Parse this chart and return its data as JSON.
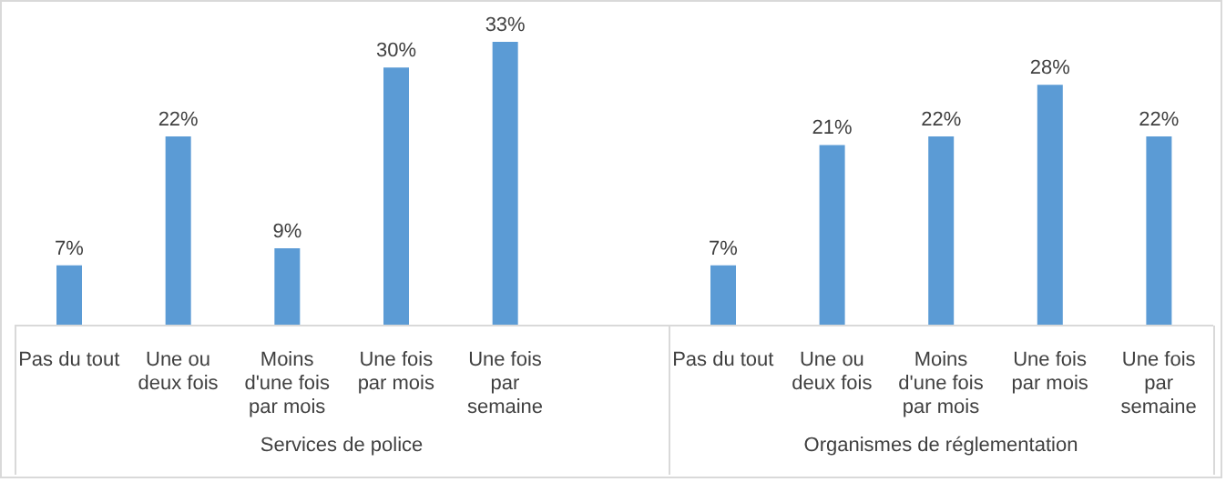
{
  "chart_data": [
    {
      "type": "bar",
      "categories": [
        "Pas du tout",
        "Une ou deux fois",
        "Moins d'une fois par mois",
        "Une fois par mois",
        "Une fois par semaine",
        null
      ],
      "values": [
        7,
        22,
        9,
        30,
        33,
        null
      ],
      "value_labels": [
        "7%",
        "22%",
        "9%",
        "30%",
        "33%",
        null
      ],
      "color": "#5b9bd5",
      "tick_labels": "x",
      "xlabel": "Services de police"
    },
    {
      "type": "bar",
      "categories": [
        "Pas du tout",
        "Une ou deux fois",
        "Moins d'une fois par mois",
        "Une fois par mois",
        "Une fois par semaine"
      ],
      "values": [
        7,
        21,
        22,
        28,
        22
      ],
      "value_labels": [
        "7%",
        "21%",
        "22%",
        "28%",
        "22%"
      ],
      "color": "#5b9bd5",
      "tick_labels": "x",
      "xlabel": "Organismes de réglementation"
    }
  ]
}
